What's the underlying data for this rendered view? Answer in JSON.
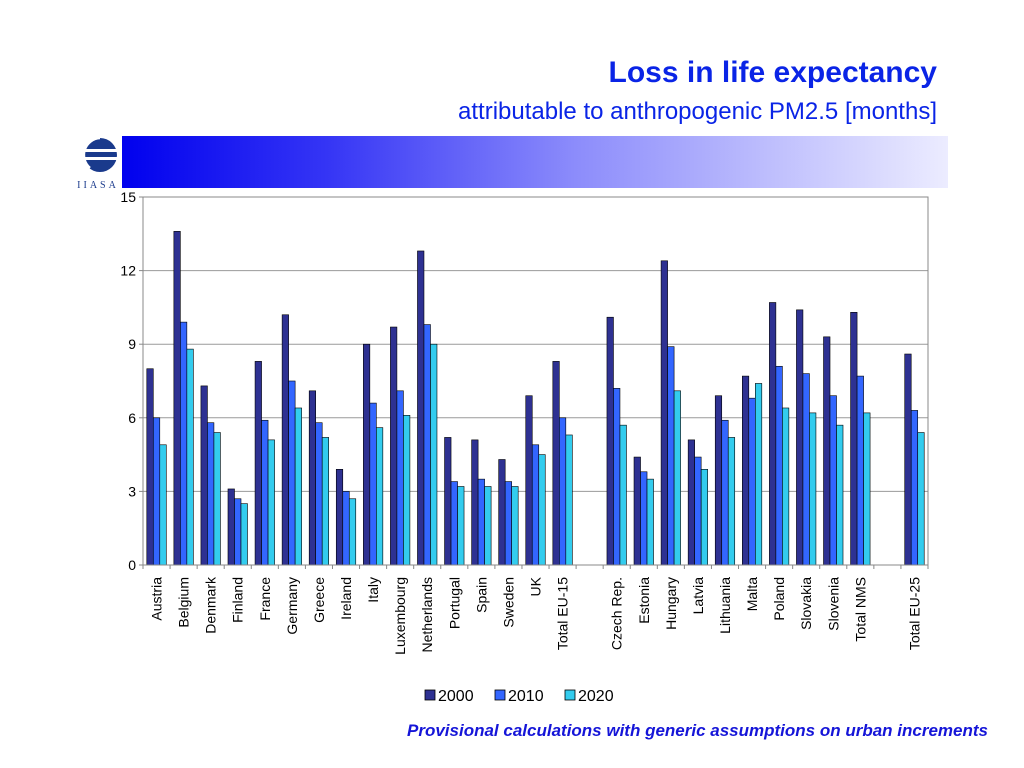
{
  "header": {
    "title": "Loss in life expectancy",
    "subtitle": "attributable to anthropogenic PM2.5 [months]"
  },
  "logo": {
    "text": "IIASA",
    "icon": "iiasa-globe-logo"
  },
  "footnote": "Provisional calculations with generic assumptions on urban increments",
  "colors": {
    "s2000": "#2e3192",
    "s2010": "#3366ff",
    "s2020": "#33ccee",
    "accent": "#0a24e6"
  },
  "chart_data": {
    "type": "bar",
    "ylim": [
      0,
      15
    ],
    "yticks": [
      0,
      3,
      6,
      9,
      12,
      15
    ],
    "grid": true,
    "legend": "bottom",
    "categories": [
      "Austria",
      "Belgium",
      "Denmark",
      "Finland",
      "France",
      "Germany",
      "Greece",
      "Ireland",
      "Italy",
      "Luxembourg",
      "Netherlands",
      "Portugal",
      "Spain",
      "Sweden",
      "UK",
      "Total EU-15",
      "",
      "Czech Rep.",
      "Estonia",
      "Hungary",
      "Latvia",
      "Lithuania",
      "Malta",
      "Poland",
      "Slovakia",
      "Slovenia",
      "Total NMS",
      "",
      "Total EU-25"
    ],
    "series": [
      {
        "name": "2000",
        "values": [
          8.0,
          13.6,
          7.3,
          3.1,
          8.3,
          10.2,
          7.1,
          3.9,
          9.0,
          9.7,
          12.8,
          5.2,
          5.1,
          4.3,
          6.9,
          8.3,
          null,
          10.1,
          4.4,
          12.4,
          5.1,
          6.9,
          7.7,
          10.7,
          10.4,
          9.3,
          10.3,
          null,
          8.6
        ]
      },
      {
        "name": "2010",
        "values": [
          6.0,
          9.9,
          5.8,
          2.7,
          5.9,
          7.5,
          5.8,
          3.0,
          6.6,
          7.1,
          9.8,
          3.4,
          3.5,
          3.4,
          4.9,
          6.0,
          null,
          7.2,
          3.8,
          8.9,
          4.4,
          5.9,
          6.8,
          8.1,
          7.8,
          6.9,
          7.7,
          null,
          6.3
        ]
      },
      {
        "name": "2020",
        "values": [
          4.9,
          8.8,
          5.4,
          2.5,
          5.1,
          6.4,
          5.2,
          2.7,
          5.6,
          6.1,
          9.0,
          3.2,
          3.2,
          3.2,
          4.5,
          5.3,
          null,
          5.7,
          3.5,
          7.1,
          3.9,
          5.2,
          7.4,
          6.4,
          6.2,
          5.7,
          6.2,
          null,
          5.4
        ]
      }
    ]
  }
}
